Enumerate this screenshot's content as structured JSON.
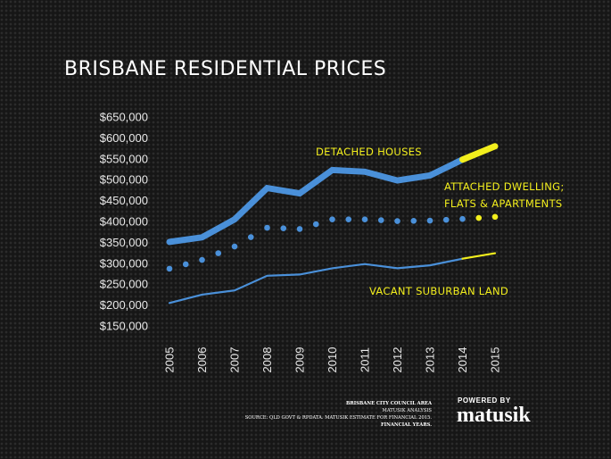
{
  "chart_data": {
    "type": "line",
    "title": "BRISBANE RESIDENTIAL PRICES",
    "x": [
      "2005",
      "2006",
      "2007",
      "2008",
      "2009",
      "2010",
      "2011",
      "2012",
      "2013",
      "2014",
      "2015"
    ],
    "ylim": [
      150000,
      650000
    ],
    "yticks": [
      "$650,000",
      "$600,000",
      "$550,000",
      "$500,000",
      "$450,000",
      "$400,000",
      "$350,000",
      "$300,000",
      "$250,000",
      "$200,000",
      "$150,000"
    ],
    "grid": false,
    "series": [
      {
        "name": "DETACHED HOUSES",
        "style": "thick",
        "color": "#4a90d9",
        "estimate_color": "#f2ee1d",
        "values": [
          351000,
          362000,
          405000,
          480000,
          467000,
          523000,
          519000,
          498000,
          510000,
          548000,
          580000
        ]
      },
      {
        "name": "ATTACHED DWELLING; FLATS & APARTMENTS",
        "style": "dotted",
        "color": "#4a90d9",
        "estimate_color": "#f2ee1d",
        "values": [
          287000,
          308000,
          340000,
          385000,
          382000,
          405000,
          405000,
          401000,
          402000,
          406000,
          411000
        ]
      },
      {
        "name": "VACANT SUBURBAN LAND",
        "style": "thin",
        "color": "#4a90d9",
        "estimate_color": "#f2ee1d",
        "values": [
          205000,
          225000,
          235000,
          270000,
          273000,
          288000,
          298000,
          288000,
          295000,
          311000,
          324000
        ]
      }
    ],
    "estimate_from_index": 9
  },
  "annotations": {
    "detached": "DETACHED HOUSES",
    "attached_line1": "ATTACHED DWELLING;",
    "attached_line2": "FLATS & APARTMENTS",
    "vacant": "VACANT SUBURBAN LAND"
  },
  "source": {
    "line1": "BRISBANE CITY COUNCIL AREA",
    "line2": "MATUSIK ANALYSIS",
    "line3": "SOURCE: QLD GOVT & RPDATA.  MATUSIK ESTIMATE FOR FINANCIAL 2015.",
    "line4": "FINANCIAL YEARS."
  },
  "brand": {
    "powered": "POWERED BY",
    "name": "matusik"
  },
  "colors": {
    "background": "#161616",
    "line": "#4a90d9",
    "highlight": "#f2ee1d",
    "text": "#ffffff"
  }
}
